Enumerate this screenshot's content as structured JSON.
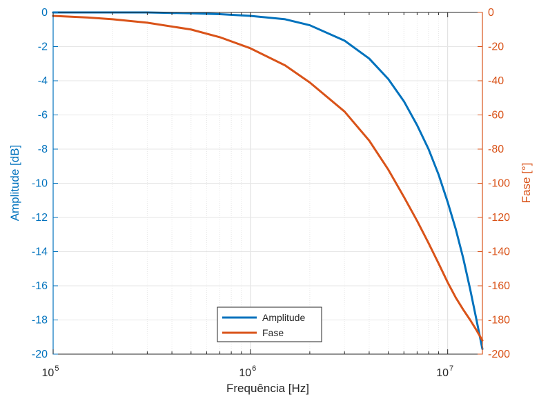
{
  "chart_data": {
    "type": "line",
    "title": "",
    "xlabel": "Frequência [Hz]",
    "ylabel_left": "Amplitude [dB]",
    "ylabel_right": "Fase [°]",
    "x_scale": "log",
    "xlim": [
      100000,
      15000000
    ],
    "ylim_left": [
      -20,
      0
    ],
    "ylim_right": [
      -200,
      0
    ],
    "x_ticks": [
      {
        "value": 100000,
        "base": "10",
        "exp": "5"
      },
      {
        "value": 1000000,
        "base": "10",
        "exp": "6"
      },
      {
        "value": 10000000,
        "base": "10",
        "exp": "7"
      }
    ],
    "y_ticks_left": [
      "0",
      "-2",
      "-4",
      "-6",
      "-8",
      "-10",
      "-12",
      "-14",
      "-16",
      "-18",
      "-20"
    ],
    "y_ticks_right": [
      "0",
      "-20",
      "-40",
      "-60",
      "-80",
      "-100",
      "-120",
      "-140",
      "-160",
      "-180",
      "-200"
    ],
    "grid": true,
    "legend_position": "bottom-center",
    "colors": {
      "amplitude": "#0072BD",
      "fase": "#D95319",
      "grid": "#e6e6e6",
      "axis": "#262626"
    },
    "series": [
      {
        "name": "Amplitude",
        "axis": "left",
        "x": [
          100000,
          200000,
          300000,
          500000,
          700000,
          1000000,
          1500000,
          2000000,
          3000000,
          4000000,
          5000000,
          6000000,
          7000000,
          8000000,
          9000000,
          10000000,
          11000000,
          12000000,
          13000000,
          14000000,
          15000000
        ],
        "values": [
          0,
          0,
          0,
          -0.05,
          -0.1,
          -0.2,
          -0.4,
          -0.75,
          -1.65,
          -2.7,
          -3.9,
          -5.2,
          -6.6,
          -8.0,
          -9.5,
          -11.1,
          -12.7,
          -14.4,
          -16.2,
          -18.0,
          -19.7
        ]
      },
      {
        "name": "Fase",
        "axis": "right",
        "x": [
          100000,
          150000,
          200000,
          300000,
          500000,
          700000,
          1000000,
          1500000,
          2000000,
          3000000,
          4000000,
          5000000,
          6000000,
          7000000,
          8000000,
          9000000,
          10000000,
          11000000,
          12000000,
          13000000,
          14000000,
          15000000
        ],
        "values": [
          -2,
          -3,
          -4,
          -6,
          -10,
          -14.5,
          -21,
          -31,
          -41,
          -58,
          -75,
          -92,
          -108,
          -122,
          -135,
          -147,
          -158,
          -167,
          -174,
          -180,
          -186,
          -192
        ]
      }
    ]
  }
}
